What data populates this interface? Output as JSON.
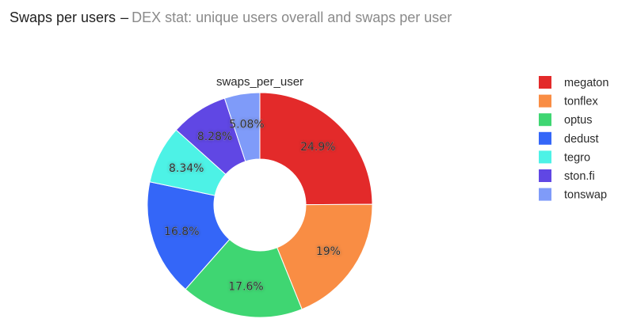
{
  "header": {
    "title": "Swaps per users",
    "separator": "–",
    "subtitle": "DEX stat: unique users overall and swaps per user"
  },
  "chart_data": {
    "type": "pie",
    "hole": true,
    "title": "swaps_per_user",
    "legend_position": "right",
    "slices": [
      {
        "name": "megaton",
        "value": 24.9,
        "label": "24.9%",
        "color": "#e32a2a"
      },
      {
        "name": "tonflex",
        "value": 19.0,
        "label": "19%",
        "color": "#f98d44"
      },
      {
        "name": "optus",
        "value": 17.6,
        "label": "17.6%",
        "color": "#3fd672"
      },
      {
        "name": "dedust",
        "value": 16.8,
        "label": "16.8%",
        "color": "#3466f8"
      },
      {
        "name": "tegro",
        "value": 8.34,
        "label": "8.34%",
        "color": "#4df2e6"
      },
      {
        "name": "ston.fi",
        "value": 8.28,
        "label": "8.28%",
        "color": "#6047e4"
      },
      {
        "name": "tonswap",
        "value": 5.08,
        "label": "5.08%",
        "color": "#7f9bf9"
      }
    ]
  }
}
